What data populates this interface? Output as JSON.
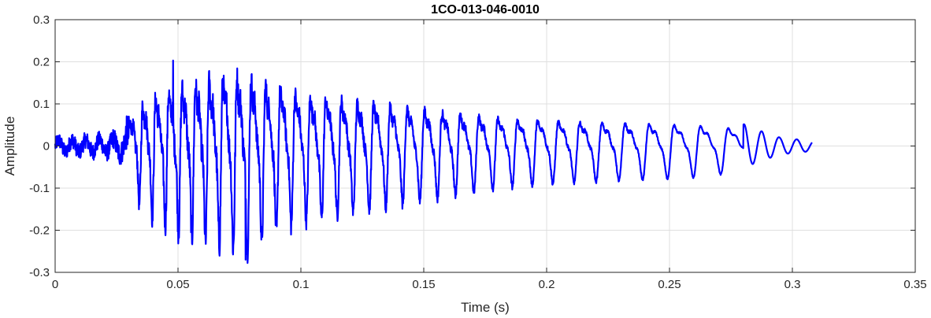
{
  "chart_data": {
    "type": "line",
    "title": "1CO-013-046-0010",
    "xlabel": "Time (s)",
    "ylabel": "Amplitude",
    "xlim": [
      0,
      0.35
    ],
    "ylim": [
      -0.3,
      0.3
    ],
    "xticks": [
      0,
      0.05,
      0.1,
      0.15,
      0.2,
      0.25,
      0.3,
      0.35
    ],
    "xtick_labels": [
      "0",
      "0.05",
      "0.1",
      "0.15",
      "0.2",
      "0.25",
      "0.3",
      "0.35"
    ],
    "yticks": [
      -0.3,
      -0.2,
      -0.1,
      0,
      0.1,
      0.2,
      0.3
    ],
    "ytick_labels": [
      "-0.3",
      "-0.2",
      "-0.1",
      "0",
      "0.1",
      "0.2",
      "0.3"
    ],
    "grid": true,
    "series": [
      {
        "color": "#0000ff",
        "signal_end_time": 0.308,
        "sample_rate": 10000,
        "waveform_shape": "noisy onset at ~0.03 s, peak envelope ~0.07 s, decaying oscillation to ~0.308 s",
        "envelope": [
          [
            0.0,
            0.028
          ],
          [
            0.01,
            0.03
          ],
          [
            0.02,
            0.032
          ],
          [
            0.028,
            0.045
          ],
          [
            0.033,
            0.13
          ],
          [
            0.04,
            0.17
          ],
          [
            0.048,
            0.2
          ],
          [
            0.06,
            0.23
          ],
          [
            0.07,
            0.24
          ],
          [
            0.077,
            0.25
          ],
          [
            0.085,
            0.22
          ],
          [
            0.1,
            0.18
          ],
          [
            0.12,
            0.16
          ],
          [
            0.14,
            0.14
          ],
          [
            0.16,
            0.12
          ],
          [
            0.18,
            0.1
          ],
          [
            0.2,
            0.09
          ],
          [
            0.22,
            0.085
          ],
          [
            0.24,
            0.08
          ],
          [
            0.26,
            0.075
          ],
          [
            0.275,
            0.065
          ],
          [
            0.285,
            0.04
          ],
          [
            0.295,
            0.02
          ],
          [
            0.308,
            0.012
          ]
        ],
        "peaks": [
          {
            "x": 0.048,
            "y": 0.203
          },
          {
            "x": 0.0775,
            "y": -0.27
          }
        ]
      }
    ]
  }
}
